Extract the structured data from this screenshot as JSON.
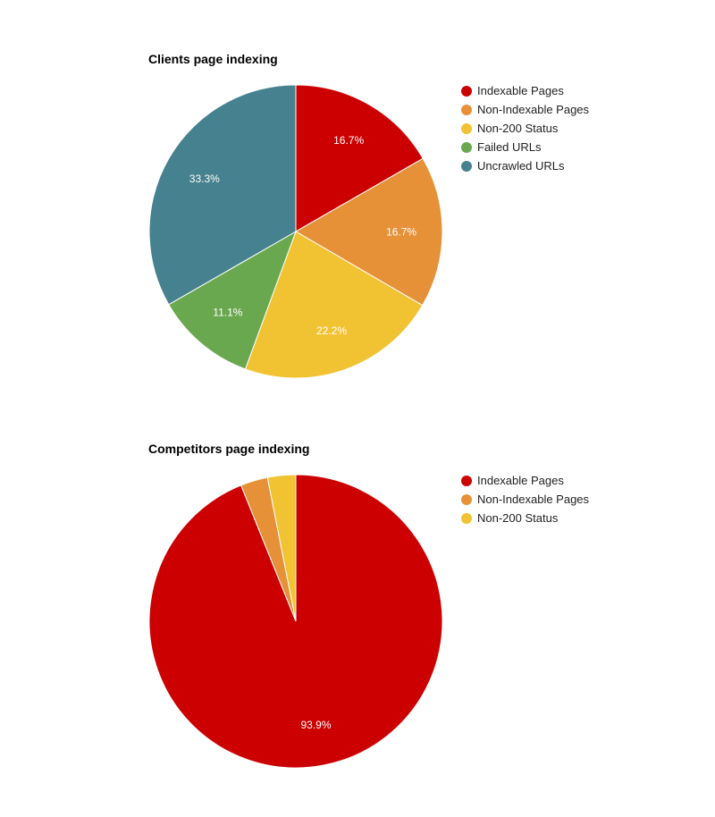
{
  "chart_data": [
    {
      "type": "pie",
      "title": "Clients page indexing",
      "slices": [
        {
          "label": "Indexable Pages",
          "value": 16.7,
          "value_label": "16.7%",
          "color": "#cc0000"
        },
        {
          "label": "Non-Indexable Pages",
          "value": 16.7,
          "value_label": "16.7%",
          "color": "#e69138"
        },
        {
          "label": "Non-200 Status",
          "value": 22.2,
          "value_label": "22.2%",
          "color": "#f1c232"
        },
        {
          "label": "Failed URLs",
          "value": 11.1,
          "value_label": "11.1%",
          "color": "#6aa84f"
        },
        {
          "label": "Uncrawled URLs",
          "value": 33.3,
          "value_label": "33.3%",
          "color": "#45818e"
        }
      ],
      "legend_position": "right"
    },
    {
      "type": "pie",
      "title": "Competitors page indexing",
      "slices": [
        {
          "label": "Indexable Pages",
          "value": 93.9,
          "value_label": "93.9%",
          "color": "#cc0000"
        },
        {
          "label": "Non-Indexable Pages",
          "value": 3.0,
          "value_label": "",
          "color": "#e69138"
        },
        {
          "label": "Non-200 Status",
          "value": 3.1,
          "value_label": "",
          "color": "#f1c232"
        }
      ],
      "legend_position": "right"
    }
  ]
}
